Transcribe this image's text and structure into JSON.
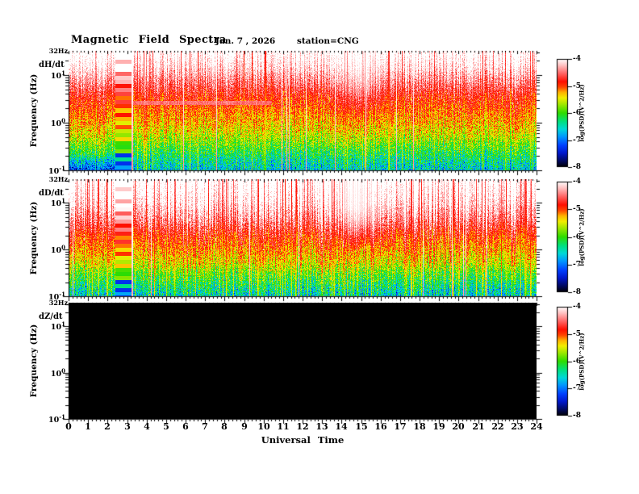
{
  "header": {
    "title": "Magnetic Field Spectra",
    "date": "Jan. 7 , 2026",
    "station": "station=CNG"
  },
  "axis": {
    "xlabel": "Universal Time",
    "x_ticks": [
      "0",
      "1",
      "2",
      "3",
      "4",
      "5",
      "6",
      "7",
      "8",
      "9",
      "10",
      "11",
      "12",
      "13",
      "14",
      "15",
      "16",
      "17",
      "18",
      "19",
      "20",
      "21",
      "22",
      "23",
      "24"
    ]
  },
  "colorbar": {
    "label": "log(PSD)(V^2/Hz)",
    "ticks": [
      "-4",
      "-5",
      "-6",
      "-7",
      "-8"
    ]
  },
  "panels": [
    {
      "label": "dH/dt",
      "ylabel": "Frequency (Hz)",
      "top_freq": "32Hz",
      "y_ticks": [
        {
          "base": "10",
          "exp": "1"
        },
        {
          "base": "10",
          "exp": "0"
        },
        {
          "base": "10",
          "exp": "-1"
        }
      ]
    },
    {
      "label": "dD/dt",
      "ylabel": "Frequency (Hz)",
      "top_freq": "32Hz",
      "y_ticks": [
        {
          "base": "10",
          "exp": "1"
        },
        {
          "base": "10",
          "exp": "0"
        },
        {
          "base": "10",
          "exp": "-1"
        }
      ]
    },
    {
      "label": "dZ/dt",
      "ylabel": "Frequency (Hz)",
      "top_freq": "32Hz",
      "y_ticks": [
        {
          "base": "10",
          "exp": "1"
        },
        {
          "base": "10",
          "exp": "0"
        },
        {
          "base": "10",
          "exp": "-1"
        }
      ]
    }
  ],
  "chart_data": {
    "type": "heatmap",
    "subtype": "spectrogram",
    "title": "Magnetic Field Spectra",
    "date": "Jan. 7 , 2026",
    "station": "CNG",
    "x": {
      "label": "Universal Time",
      "range_hours": [
        0,
        24
      ],
      "tick_step_hours": 1
    },
    "y": {
      "label": "Frequency (Hz)",
      "scale": "log",
      "range_hz": [
        0.1,
        32
      ],
      "decade_ticks": [
        10,
        1,
        0.1
      ]
    },
    "z": {
      "label": "log(PSD)(V^2/Hz)",
      "range": [
        -8,
        -4
      ],
      "ticks": [
        -4,
        -5,
        -6,
        -7,
        -8
      ]
    },
    "colormap_stops": [
      {
        "t": 0.0,
        "c": "#000000"
      },
      {
        "t": 0.05,
        "c": "#000855"
      },
      {
        "t": 0.13,
        "c": "#0018cc"
      },
      {
        "t": 0.2,
        "c": "#0040ff"
      },
      {
        "t": 0.28,
        "c": "#0096ff"
      },
      {
        "t": 0.35,
        "c": "#00d8d8"
      },
      {
        "t": 0.42,
        "c": "#00e080"
      },
      {
        "t": 0.5,
        "c": "#2edc00"
      },
      {
        "t": 0.58,
        "c": "#a0e800"
      },
      {
        "t": 0.64,
        "c": "#f2ee00"
      },
      {
        "t": 0.69,
        "c": "#ffb300"
      },
      {
        "t": 0.74,
        "c": "#ff4400"
      },
      {
        "t": 0.79,
        "c": "#ff0f00"
      },
      {
        "t": 0.87,
        "c": "#ff6a6a"
      },
      {
        "t": 0.94,
        "c": "#ffc0c0"
      },
      {
        "t": 1.0,
        "c": "#ffffff"
      }
    ],
    "panels": [
      {
        "name": "dH/dt",
        "no_data": false,
        "seed": 42,
        "profile": [
          [
            0,
            -3.88
          ],
          [
            0.13,
            -4.08
          ],
          [
            0.27,
            -4.45
          ],
          [
            0.38,
            -4.8
          ],
          [
            0.5,
            -5.05
          ],
          [
            0.62,
            -5.3
          ],
          [
            0.73,
            -5.62
          ],
          [
            0.82,
            -5.98
          ],
          [
            0.9,
            -6.3
          ],
          [
            1,
            -6.62
          ]
        ],
        "pixel_noise": [
          0.17,
          0.46
        ],
        "column_noise": 0.2,
        "active_column_rate": 0.05,
        "active_pull_level": -5.15,
        "white_gap_rate": 0.012,
        "gap_band_hours": [
          2.4,
          3.22
        ],
        "whitening": {
          "center": 15.0,
          "sigma": 1.15,
          "strength": 0.5
        },
        "bright_line": {
          "hours": [
            3.3,
            10.4
          ],
          "yfrac": [
            0.415,
            0.45
          ],
          "level": -4.3
        },
        "bottom_blue_hours": [
          0,
          2.4
        ]
      },
      {
        "name": "dD/dt",
        "no_data": false,
        "seed": 1337,
        "profile": [
          [
            0,
            -3.82
          ],
          [
            0.2,
            -4.05
          ],
          [
            0.35,
            -4.4
          ],
          [
            0.48,
            -4.85
          ],
          [
            0.6,
            -5.15
          ],
          [
            0.72,
            -5.5
          ],
          [
            0.82,
            -5.95
          ],
          [
            0.9,
            -6.25
          ],
          [
            1,
            -6.6
          ]
        ],
        "pixel_noise": [
          0.18,
          0.46
        ],
        "column_noise": 0.28,
        "active_column_rate": 0.11,
        "active_pull_level": -5.1,
        "white_gap_rate": 0.015,
        "gap_band_hours": [
          2.4,
          3.22
        ],
        "whitening": {
          "center": 14.8,
          "sigma": 0.95,
          "strength": 0.85
        },
        "bright_line": null,
        "bottom_blue_hours": null
      },
      {
        "name": "dZ/dt",
        "no_data": true
      }
    ]
  }
}
